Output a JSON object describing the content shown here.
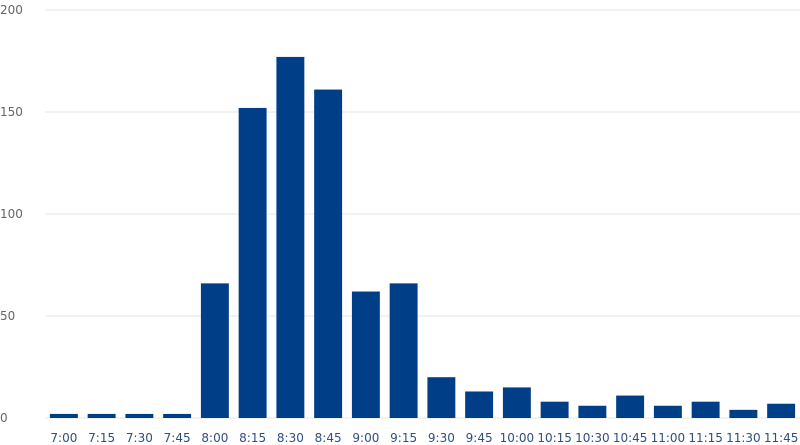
{
  "chart_data": {
    "type": "bar",
    "title": "",
    "xlabel": "",
    "ylabel": "",
    "categories": [
      "7:00",
      "7:15",
      "7:30",
      "7:45",
      "8:00",
      "8:15",
      "8:30",
      "8:45",
      "9:00",
      "9:15",
      "9:30",
      "9:45",
      "10:00",
      "10:15",
      "10:30",
      "10:45",
      "11:00",
      "11:15",
      "11:30",
      "11:45"
    ],
    "values": [
      2,
      2,
      2,
      2,
      66,
      152,
      177,
      161,
      62,
      66,
      20,
      13,
      15,
      8,
      6,
      11,
      6,
      8,
      4,
      7
    ],
    "ylim": [
      0,
      200
    ],
    "yticks": [
      0,
      50,
      100,
      150,
      200
    ],
    "grid": true,
    "bar_color": "#003f87",
    "grid_color": "#e6e6e6"
  }
}
